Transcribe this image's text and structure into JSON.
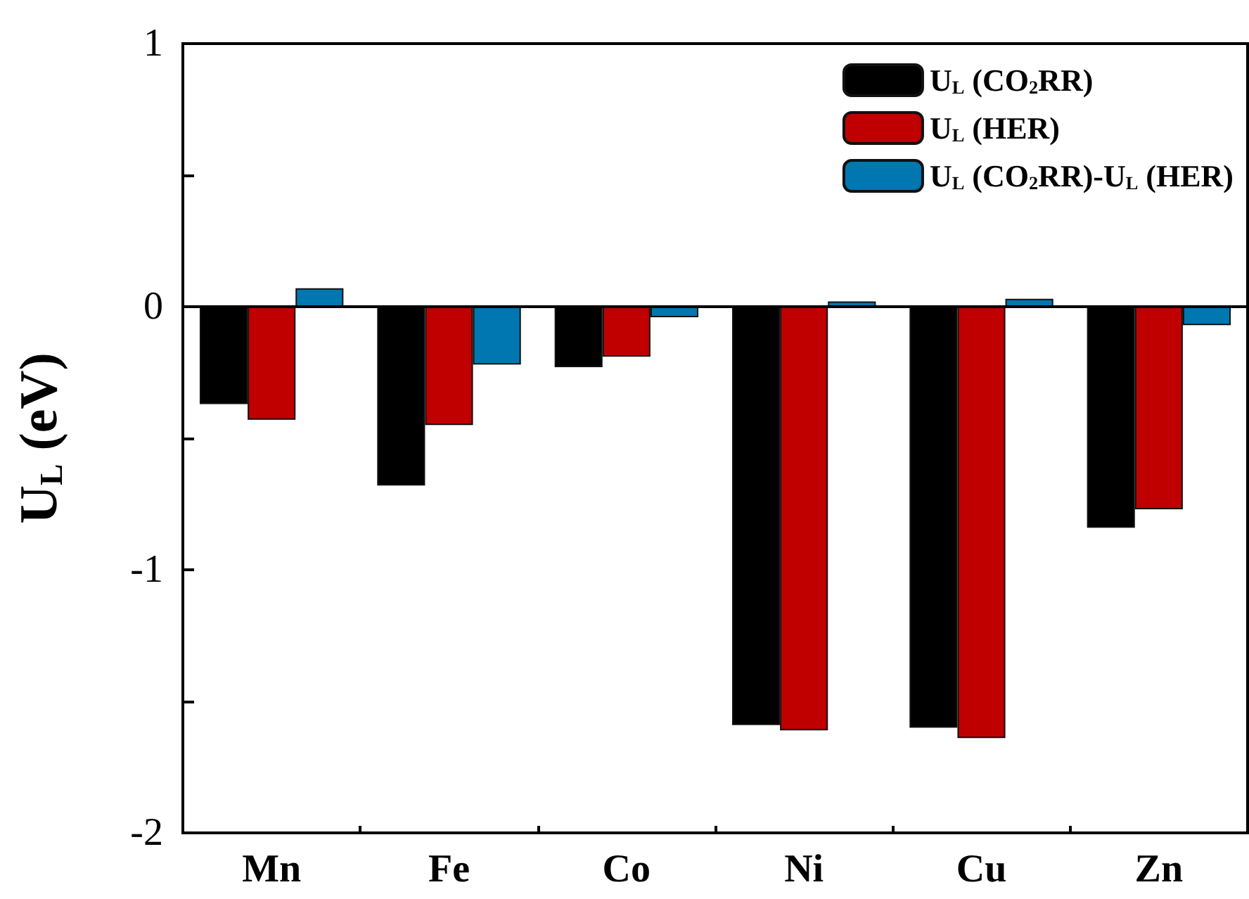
{
  "chart_data": {
    "type": "bar",
    "ylabel": "U$_{L}$ (eV)",
    "categories": [
      "Mn",
      "Fe",
      "Co",
      "Ni",
      "Cu",
      "Zn"
    ],
    "series": [
      {
        "name": "U$_{L}$ (CO$_{2}$RR)",
        "color": "#000000",
        "values": [
          -0.37,
          -0.68,
          -0.23,
          -1.59,
          -1.6,
          -0.84
        ]
      },
      {
        "name": "U$_{L}$ (HER)",
        "color": "#c00000",
        "values": [
          -0.43,
          -0.45,
          -0.19,
          -1.61,
          -1.64,
          -0.77
        ]
      },
      {
        "name": "U$_{L}$ (CO$_{2}$RR)-U$_{L}$ (HER)",
        "color": "#0077b0",
        "values": [
          0.07,
          -0.22,
          -0.04,
          0.02,
          0.03,
          -0.07
        ]
      }
    ],
    "ylim": [
      -2,
      1
    ],
    "yticks": [
      -2,
      {
        "value": -1.5,
        "label": null
      },
      -1,
      {
        "value": -0.5,
        "label": null
      },
      0,
      {
        "value": 0.5,
        "label": null
      },
      1
    ],
    "ref_lines": [
      {
        "axis": "y",
        "value": 0,
        "color": "#000000"
      }
    ],
    "legend": "top right",
    "grid": false
  }
}
